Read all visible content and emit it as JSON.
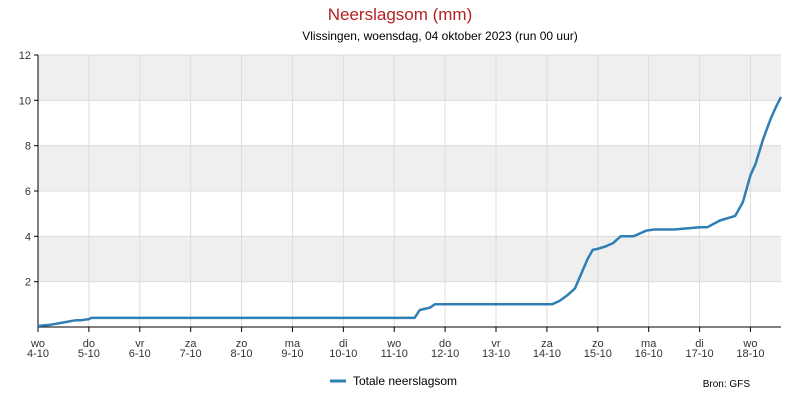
{
  "chart_data": {
    "type": "line",
    "title": "Neerslagsom (mm)",
    "subtitle": "Vlissingen, woensdag, 04 oktober 2023 (run 00 uur)",
    "ylim": [
      0,
      12
    ],
    "yticks": [
      2,
      4,
      6,
      8,
      10,
      12
    ],
    "xlim": [
      0,
      14.6
    ],
    "xticks": [
      {
        "day": "wo",
        "date": "4-10"
      },
      {
        "day": "do",
        "date": "5-10"
      },
      {
        "day": "vr",
        "date": "6-10"
      },
      {
        "day": "za",
        "date": "7-10"
      },
      {
        "day": "zo",
        "date": "8-10"
      },
      {
        "day": "ma",
        "date": "9-10"
      },
      {
        "day": "di",
        "date": "10-10"
      },
      {
        "day": "wo",
        "date": "11-10"
      },
      {
        "day": "do",
        "date": "12-10"
      },
      {
        "day": "vr",
        "date": "13-10"
      },
      {
        "day": "za",
        "date": "14-10"
      },
      {
        "day": "zo",
        "date": "15-10"
      },
      {
        "day": "ma",
        "date": "16-10"
      },
      {
        "day": "di",
        "date": "17-10"
      },
      {
        "day": "wo",
        "date": "18-10"
      }
    ],
    "grid": true,
    "colors": {
      "line": "#2f7fb5",
      "band": "#efefef",
      "grid": "#dcdcdc",
      "axis": "#000000"
    },
    "series": [
      {
        "name": "Totale neerslagsom",
        "x": [
          0,
          0.25,
          0.5,
          0.62,
          0.75,
          0.85,
          1.0,
          1.05,
          1.1,
          1.2,
          2,
          4,
          6,
          7.4,
          7.5,
          7.6,
          7.7,
          7.8,
          7.9,
          8.0,
          8.1,
          8.5,
          9.5,
          10.1,
          10.25,
          10.4,
          10.55,
          10.8,
          10.9,
          11.0,
          11.15,
          11.3,
          11.45,
          11.55,
          11.7,
          11.95,
          12.1,
          12.35,
          12.5,
          12.75,
          13.0,
          13.15,
          13.4,
          13.55,
          13.7,
          13.85,
          14.0,
          14.1,
          14.25,
          14.4,
          14.5,
          14.6
        ],
        "y": [
          0.05,
          0.1,
          0.2,
          0.25,
          0.3,
          0.3,
          0.35,
          0.4,
          0.4,
          0.4,
          0.4,
          0.4,
          0.4,
          0.4,
          0.75,
          0.8,
          0.85,
          1.0,
          1.0,
          1.0,
          1.0,
          1.0,
          1.0,
          1.0,
          1.15,
          1.4,
          1.7,
          3.0,
          3.4,
          3.45,
          3.55,
          3.7,
          4.0,
          4.0,
          4.0,
          4.25,
          4.3,
          4.3,
          4.3,
          4.35,
          4.4,
          4.4,
          4.7,
          4.8,
          4.9,
          5.5,
          6.7,
          7.2,
          8.3,
          9.2,
          9.7,
          10.15
        ]
      }
    ],
    "legend": {
      "label": "Totale neerslagsom",
      "placement": "bottom"
    }
  },
  "source_text": "Bron: GFS"
}
